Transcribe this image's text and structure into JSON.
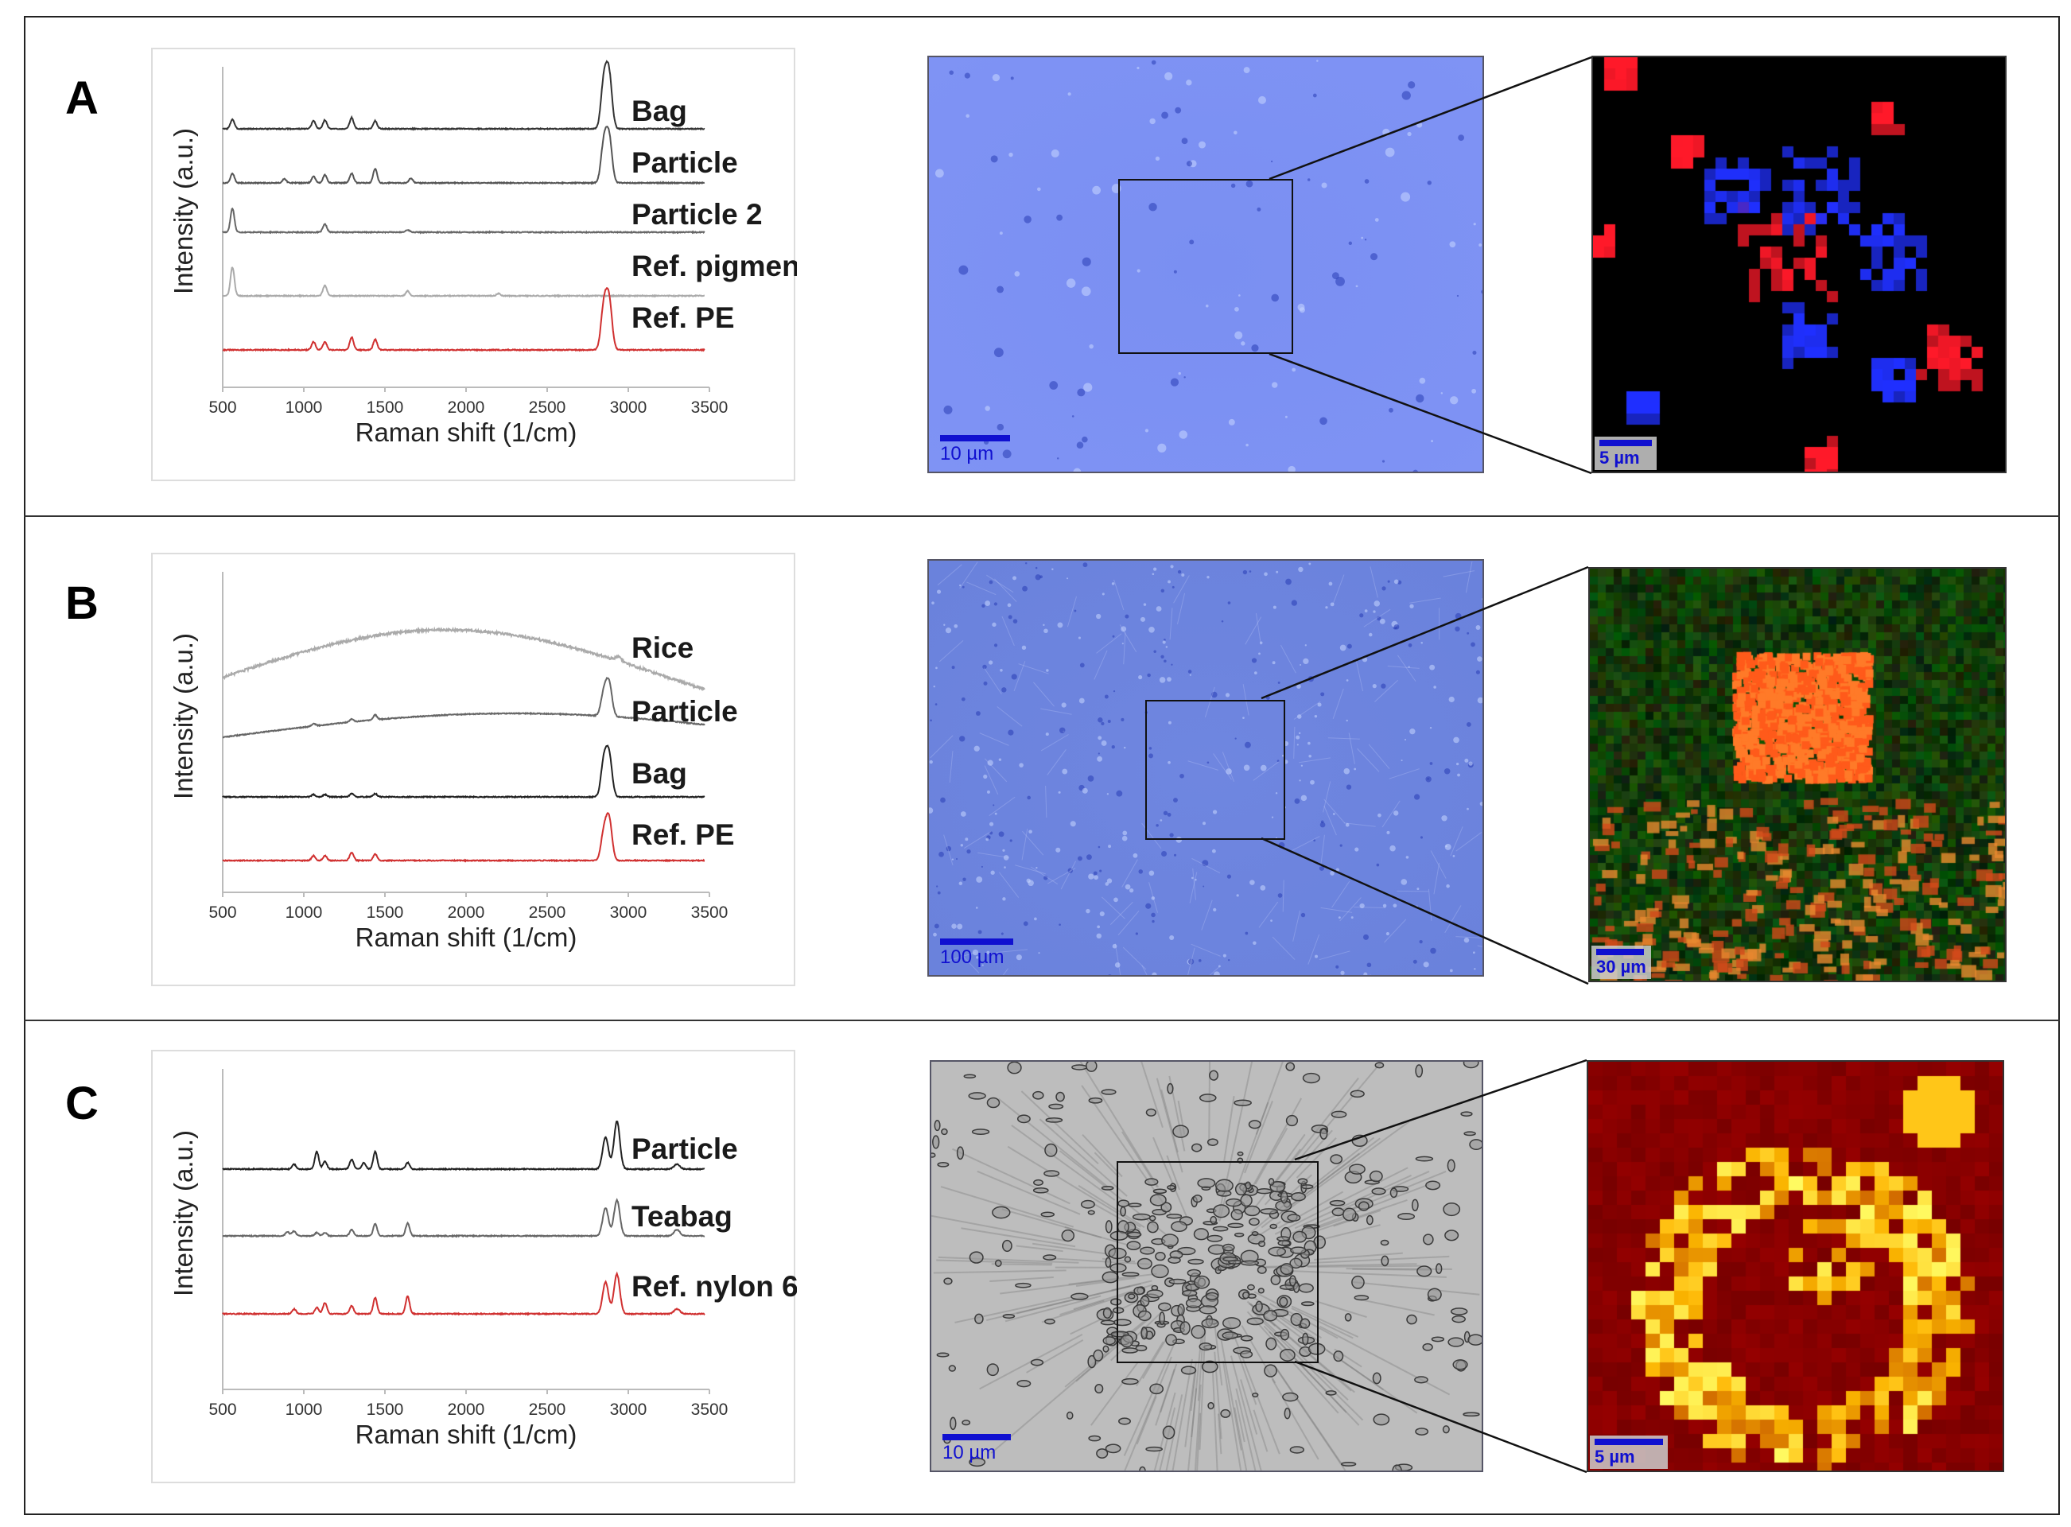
{
  "panels": [
    {
      "letter": "A",
      "chart_data": {
        "type": "line",
        "xlabel": "Raman shift (1/cm)",
        "ylabel": "Intensity (a.u.)",
        "xlim": [
          500,
          3500
        ],
        "xticks": [
          500,
          1000,
          1500,
          2000,
          2500,
          3000,
          3500
        ],
        "grid": false,
        "series": [
          {
            "name": "Bag",
            "color": "#333333",
            "peaks": [
              [
                560,
                1.2
              ],
              [
                1060,
                1.0
              ],
              [
                1130,
                1.1
              ],
              [
                1295,
                1.4
              ],
              [
                1440,
                1.0
              ],
              [
                2850,
                6.0
              ],
              [
                2882,
                6.5
              ]
            ]
          },
          {
            "name": "Particle",
            "color": "#555555",
            "peaks": [
              [
                560,
                1.2
              ],
              [
                880,
                0.5
              ],
              [
                1060,
                0.8
              ],
              [
                1130,
                1.0
              ],
              [
                1295,
                1.2
              ],
              [
                1440,
                1.8
              ],
              [
                1660,
                0.6
              ],
              [
                2850,
                5.0
              ],
              [
                2882,
                5.5
              ]
            ]
          },
          {
            "name": "Particle 2",
            "color": "#666666",
            "peaks": [
              [
                560,
                3.0
              ],
              [
                1130,
                1.0
              ],
              [
                1640,
                0.3
              ]
            ]
          },
          {
            "name": "Ref. pigment",
            "color": "#aaaaaa",
            "peaks": [
              [
                560,
                3.6
              ],
              [
                1130,
                1.3
              ],
              [
                1640,
                0.6
              ],
              [
                2200,
                0.3
              ]
            ]
          },
          {
            "name": "Ref. PE",
            "color": "#d03030",
            "peaks": [
              [
                1060,
                1.0
              ],
              [
                1130,
                1.0
              ],
              [
                1295,
                1.6
              ],
              [
                1440,
                1.3
              ],
              [
                2850,
                5.5
              ],
              [
                2882,
                6.0
              ]
            ]
          }
        ]
      },
      "micro_scale": "10 µm",
      "map_scale": "5 µm",
      "micro_style": "blue",
      "map_style": "rb"
    },
    {
      "letter": "B",
      "chart_data": {
        "type": "line",
        "xlabel": "Raman shift (1/cm)",
        "ylabel": "Intensity (a.u.)",
        "xlim": [
          500,
          3500
        ],
        "xticks": [
          500,
          1000,
          1500,
          2000,
          2500,
          3000,
          3500
        ],
        "grid": false,
        "series": [
          {
            "name": "Rice",
            "color": "#aaaaaa",
            "peaks": [
              [
                2940,
                0.6
              ]
            ],
            "baseline": "fluorescence"
          },
          {
            "name": "Particle",
            "color": "#666666",
            "peaks": [
              [
                1060,
                0.3
              ],
              [
                1295,
                0.4
              ],
              [
                1440,
                0.6
              ],
              [
                2850,
                3.0
              ],
              [
                2882,
                4.0
              ]
            ],
            "baseline": "slope"
          },
          {
            "name": "Bag",
            "color": "#222222",
            "peaks": [
              [
                1060,
                0.3
              ],
              [
                1130,
                0.3
              ],
              [
                1295,
                0.4
              ],
              [
                1440,
                0.4
              ],
              [
                2850,
                4.5
              ],
              [
                2882,
                5.0
              ]
            ]
          },
          {
            "name": "Ref. PE",
            "color": "#d03030",
            "peaks": [
              [
                1060,
                0.6
              ],
              [
                1130,
                0.6
              ],
              [
                1295,
                1.0
              ],
              [
                1440,
                0.8
              ],
              [
                2850,
                3.5
              ],
              [
                2882,
                5.0
              ]
            ]
          }
        ]
      },
      "micro_scale": "100 µm",
      "map_scale": "30 µm",
      "micro_style": "blue",
      "map_style": "rg"
    },
    {
      "letter": "C",
      "chart_data": {
        "type": "line",
        "xlabel": "Raman shift (1/cm)",
        "ylabel": "Intensity (a.u.)",
        "xlim": [
          500,
          3500
        ],
        "xticks": [
          500,
          1000,
          1500,
          2000,
          2500,
          3000,
          3500
        ],
        "grid": false,
        "series": [
          {
            "name": "Particle",
            "color": "#222222",
            "peaks": [
              [
                940,
                0.6
              ],
              [
                1080,
                2.2
              ],
              [
                1130,
                1.0
              ],
              [
                1295,
                1.2
              ],
              [
                1370,
                0.8
              ],
              [
                1440,
                2.2
              ],
              [
                1640,
                0.8
              ],
              [
                2860,
                4.0
              ],
              [
                2930,
                6.0
              ],
              [
                3300,
                0.6
              ]
            ]
          },
          {
            "name": "Teabag",
            "color": "#666666",
            "peaks": [
              [
                900,
                0.5
              ],
              [
                940,
                0.6
              ],
              [
                1080,
                0.4
              ],
              [
                1130,
                0.4
              ],
              [
                1295,
                0.8
              ],
              [
                1440,
                1.5
              ],
              [
                1640,
                1.6
              ],
              [
                2860,
                3.5
              ],
              [
                2930,
                4.5
              ],
              [
                3300,
                0.8
              ]
            ]
          },
          {
            "name": "Ref. nylon 6",
            "color": "#d03030",
            "peaks": [
              [
                940,
                0.6
              ],
              [
                1080,
                0.8
              ],
              [
                1130,
                1.4
              ],
              [
                1295,
                1.0
              ],
              [
                1440,
                2.0
              ],
              [
                1640,
                2.2
              ],
              [
                2860,
                4.0
              ],
              [
                2930,
                5.0
              ],
              [
                3300,
                0.6
              ]
            ]
          }
        ]
      },
      "micro_scale": "10 µm",
      "map_scale": "5 µm",
      "micro_style": "gray",
      "map_style": "heat"
    }
  ]
}
